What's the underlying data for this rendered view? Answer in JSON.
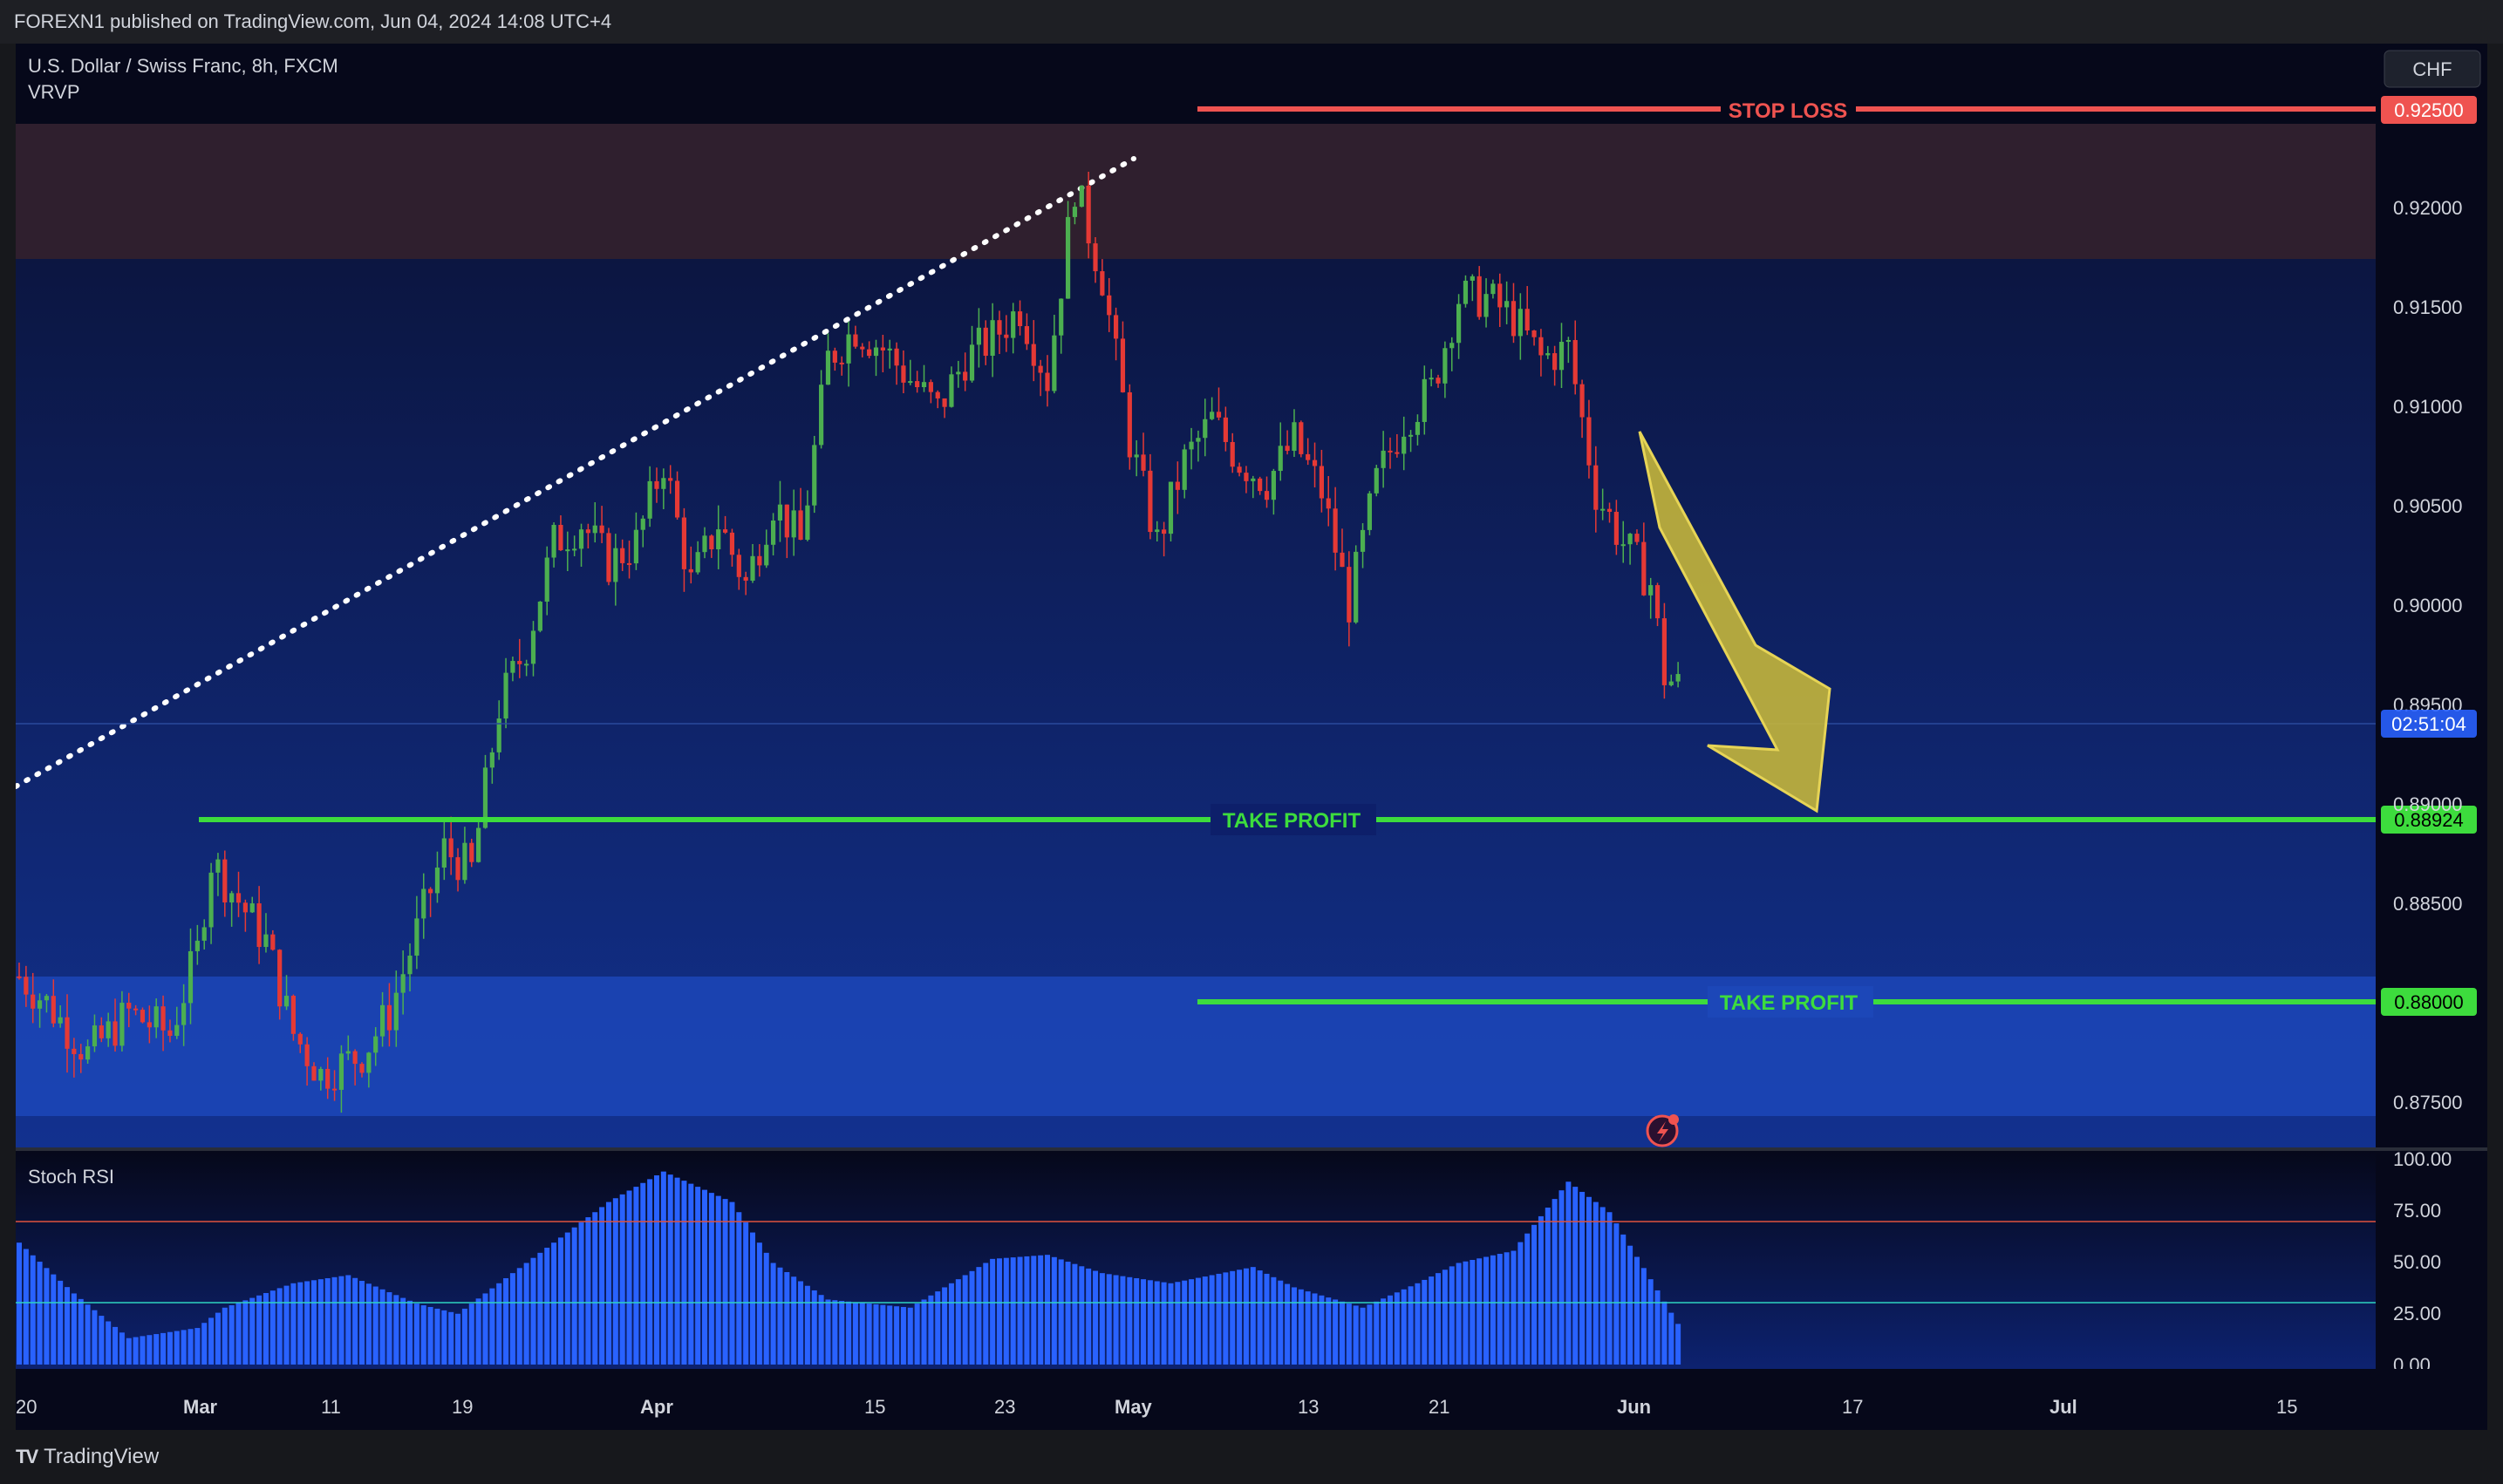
{
  "header": {
    "published": "FOREXN1 published on TradingView.com, Jun 04, 2024 14:08 UTC+4"
  },
  "chart": {
    "symbol": "U.S. Dollar / Swiss Franc, 8h, FXCM",
    "indicator": "VRVP",
    "currency_button": "CHF",
    "countdown": "02:51:04",
    "price_ticks": [
      "0.92000",
      "0.91500",
      "0.91000",
      "0.90500",
      "0.90000",
      "0.89500",
      "0.89000",
      "0.88500",
      "0.87500"
    ],
    "date_ticks": [
      "20",
      "Mar",
      "11",
      "19",
      "Apr",
      "15",
      "23",
      "May",
      "13",
      "21",
      "Jun",
      "17",
      "Jul",
      "15"
    ],
    "stop_loss": {
      "label": "STOP LOSS",
      "price": "0.92500"
    },
    "take_profit_1": {
      "label": "TAKE PROFIT",
      "price": "0.88924"
    },
    "take_profit_2": {
      "label": "TAKE PROFIT",
      "price": "0.88000"
    },
    "colors": {
      "bull": "#4caf50",
      "bear": "#e53935",
      "stop": "#ef5350",
      "target": "#3ddc3d",
      "arrow": "#c9b93a",
      "stoch": "#2962ff"
    }
  },
  "stoch": {
    "title": "Stoch RSI",
    "ticks": [
      "100.00",
      "75.00",
      "50.00",
      "25.00",
      "0.00"
    ]
  },
  "footer": {
    "brand": "TradingView",
    "logo": "TV"
  },
  "chart_data": {
    "type": "candlestick",
    "ylim": [
      0.8745,
      0.9255
    ],
    "levels": [
      {
        "name": "STOP LOSS",
        "value": 0.925
      },
      {
        "name": "TAKE PROFIT",
        "value": 0.88924
      },
      {
        "name": "TAKE PROFIT",
        "value": 0.88
      }
    ],
    "zones": [
      {
        "name": "resistance",
        "from": 0.9175,
        "to": 0.9242
      },
      {
        "name": "support",
        "from": 0.8745,
        "to": 0.8814
      }
    ],
    "stoch_levels": [
      75,
      25
    ],
    "close_path": [
      [
        0,
        0.8818
      ],
      [
        4,
        0.8805
      ],
      [
        10,
        0.878
      ],
      [
        16,
        0.88
      ],
      [
        22,
        0.879
      ],
      [
        26,
        0.883
      ],
      [
        28,
        0.8875
      ],
      [
        32,
        0.8855
      ],
      [
        36,
        0.8835
      ],
      [
        40,
        0.879
      ],
      [
        44,
        0.877
      ],
      [
        50,
        0.878
      ],
      [
        54,
        0.88
      ],
      [
        58,
        0.884
      ],
      [
        62,
        0.888
      ],
      [
        66,
        0.887
      ],
      [
        70,
        0.895
      ],
      [
        74,
        0.898
      ],
      [
        78,
        0.903
      ],
      [
        82,
        0.904
      ],
      [
        86,
        0.902
      ],
      [
        90,
        0.903
      ],
      [
        94,
        0.907
      ],
      [
        98,
        0.901
      ],
      [
        102,
        0.904
      ],
      [
        106,
        0.901
      ],
      [
        110,
        0.905
      ],
      [
        114,
        0.903
      ],
      [
        118,
        0.912
      ],
      [
        122,
        0.9135
      ],
      [
        126,
        0.9125
      ],
      [
        130,
        0.911
      ],
      [
        134,
        0.9095
      ],
      [
        138,
        0.912
      ],
      [
        142,
        0.913
      ],
      [
        146,
        0.9145
      ],
      [
        150,
        0.911
      ],
      [
        154,
        0.9205
      ],
      [
        158,
        0.916
      ],
      [
        162,
        0.908
      ],
      [
        166,
        0.903
      ],
      [
        170,
        0.907
      ],
      [
        174,
        0.909
      ],
      [
        178,
        0.907
      ],
      [
        182,
        0.906
      ],
      [
        186,
        0.908
      ],
      [
        190,
        0.9055
      ],
      [
        194,
        0.9
      ],
      [
        198,
        0.906
      ],
      [
        202,
        0.909
      ],
      [
        206,
        0.9105
      ],
      [
        210,
        0.915
      ],
      [
        214,
        0.915
      ],
      [
        218,
        0.914
      ],
      [
        222,
        0.912
      ],
      [
        226,
        0.9125
      ],
      [
        230,
        0.9055
      ],
      [
        234,
        0.903
      ],
      [
        238,
        0.901
      ],
      [
        240,
        0.8965
      ],
      [
        242,
        0.896
      ]
    ]
  }
}
